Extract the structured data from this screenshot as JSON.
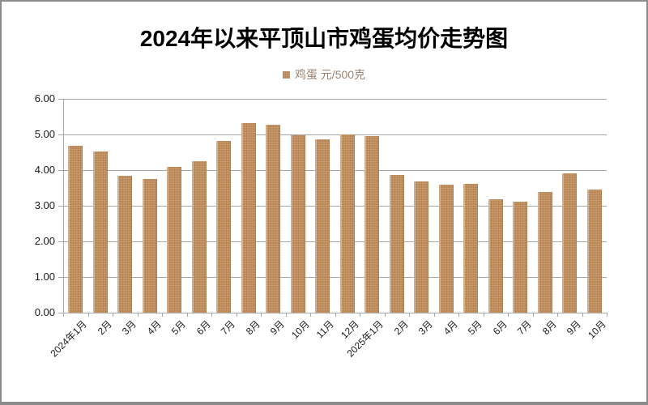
{
  "chart_data": {
    "type": "bar",
    "title": "2024年以来平顶山市鸡蛋均价走势图",
    "legend": [
      {
        "series_name": "鸡蛋",
        "unit": "元/500克",
        "label": "鸡蛋 元/500克",
        "swatch_color": "#c08e5c"
      }
    ],
    "legend_position": "top-center",
    "grid": true,
    "categories": [
      "2024年1月",
      "2月",
      "3月",
      "4月",
      "5月",
      "6月",
      "7月",
      "8月",
      "9月",
      "10月",
      "11月",
      "12月",
      "2025年1月",
      "2月",
      "3月",
      "4月",
      "5月",
      "6月",
      "7月",
      "8月",
      "9月",
      "10月"
    ],
    "values": [
      4.68,
      4.52,
      3.84,
      3.76,
      4.09,
      4.26,
      4.83,
      5.32,
      5.28,
      4.97,
      4.87,
      5.0,
      4.95,
      3.86,
      3.69,
      3.6,
      3.61,
      3.19,
      3.11,
      3.38,
      3.9,
      3.46
    ],
    "xlabel": "",
    "ylabel": "元/500克",
    "ylim": [
      0,
      6
    ],
    "ytick_step": 1,
    "ytick_labels": [
      "0.00",
      "1.00",
      "2.00",
      "3.00",
      "4.00",
      "5.00",
      "6.00"
    ],
    "colors": {
      "bar": "#c08e5c",
      "legend_text": "#9a8270",
      "grid": "#a6a6a6",
      "axis_text": "#1a1a1a",
      "title_text": "#000000",
      "frame_border": "#8c8c8c"
    }
  }
}
